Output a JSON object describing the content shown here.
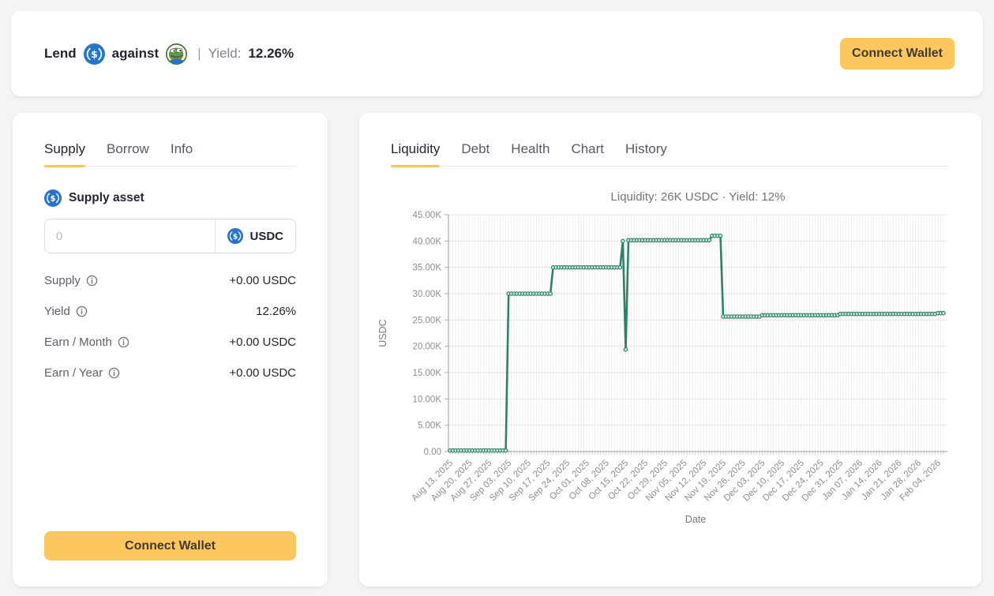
{
  "header": {
    "lend_label": "Lend",
    "against_label": "against",
    "yield_sep": "|",
    "yield_label": "Yield:",
    "yield_value": "12.26%",
    "connect_wallet": "Connect Wallet",
    "icons": {
      "lend_token": "usdc-icon",
      "collateral_token": "pepe-icon"
    }
  },
  "supply_panel": {
    "tabs": [
      {
        "label": "Supply",
        "active": true
      },
      {
        "label": "Borrow",
        "active": false
      },
      {
        "label": "Info",
        "active": false
      }
    ],
    "asset_label": "Supply asset",
    "amount_input": {
      "value": "",
      "placeholder": "0"
    },
    "token_selector": "USDC",
    "rows": [
      {
        "label": "Supply",
        "value": "+0.00 USDC"
      },
      {
        "label": "Yield",
        "value": "12.26%"
      },
      {
        "label": "Earn / Month",
        "value": "+0.00 USDC"
      },
      {
        "label": "Earn / Year",
        "value": "+0.00 USDC"
      }
    ],
    "connect_wallet": "Connect Wallet"
  },
  "market_panel": {
    "tabs": [
      {
        "label": "Liquidity",
        "active": true
      },
      {
        "label": "Debt",
        "active": false
      },
      {
        "label": "Health",
        "active": false
      },
      {
        "label": "Chart",
        "active": false
      },
      {
        "label": "History",
        "active": false
      }
    ]
  },
  "colors": {
    "accent": "#fcc75e",
    "line": "#2e8168",
    "marker_fill": "#cfe8dd",
    "usdc_blue": "#2775ca",
    "background": "#f3f4f6"
  },
  "chart_data": {
    "type": "line",
    "title": "Liquidity: 26K USDC · Yield: 12%",
    "xlabel": "Date",
    "ylabel": "USDC",
    "ylim": [
      0,
      45000
    ],
    "grid": "daily vertical gridlines, horizontal gridlines at y ticks",
    "legend": "none",
    "marker_frequency": "daily",
    "x_tick_interval_days": 7,
    "x_ticks": [
      "Aug 13, 2025",
      "Aug 20, 2025",
      "Aug 27, 2025",
      "Sep 03, 2025",
      "Sep 10, 2025",
      "Sep 17, 2025",
      "Sep 24, 2025",
      "Oct 01, 2025",
      "Oct 08, 2025",
      "Oct 15, 2025",
      "Oct 22, 2025",
      "Oct 29, 2025",
      "Nov 05, 2025",
      "Nov 12, 2025",
      "Nov 19, 2025",
      "Nov 26, 2025",
      "Dec 03, 2025",
      "Dec 10, 2025",
      "Dec 17, 2025",
      "Dec 24, 2025",
      "Dec 31, 2025",
      "Jan 07, 2026",
      "Jan 14, 2026",
      "Jan 21, 2026",
      "Jan 28, 2026",
      "Feb 04, 2026"
    ],
    "y_ticks": [
      {
        "value": 0,
        "label": "0.00"
      },
      {
        "value": 5000,
        "label": "5.00K"
      },
      {
        "value": 10000,
        "label": "10.00K"
      },
      {
        "value": 15000,
        "label": "15.00K"
      },
      {
        "value": 20000,
        "label": "20.00K"
      },
      {
        "value": 25000,
        "label": "25.00K"
      },
      {
        "value": 30000,
        "label": "30.00K"
      },
      {
        "value": 35000,
        "label": "35.00K"
      },
      {
        "value": 40000,
        "label": "40.00K"
      },
      {
        "value": 45000,
        "label": "45.00K"
      }
    ],
    "series": [
      {
        "name": "Liquidity (USDC)",
        "interpolation": "step-after, daily points",
        "end_day": 177,
        "step_breakpoints": [
          {
            "date": "Aug 13, 2025",
            "day": 0,
            "value": 200
          },
          {
            "date": "Sep 03, 2025",
            "day": 21,
            "value": 30000
          },
          {
            "date": "Sep 19, 2025",
            "day": 37,
            "value": 35000
          },
          {
            "date": "Oct 14, 2025",
            "day": 62,
            "value": 40000
          },
          {
            "date": "Oct 15, 2025",
            "day": 63,
            "value": 19400
          },
          {
            "date": "Oct 16, 2025",
            "day": 64,
            "value": 40150
          },
          {
            "date": "Nov 15, 2025",
            "day": 94,
            "value": 41000
          },
          {
            "date": "Nov 19, 2025",
            "day": 98,
            "value": 25650
          },
          {
            "date": "Dec 03, 2025",
            "day": 112,
            "value": 25900
          },
          {
            "date": "Dec 31, 2025",
            "day": 140,
            "value": 26150
          },
          {
            "date": "Feb 04, 2026",
            "day": 175,
            "value": 26300
          }
        ]
      }
    ]
  }
}
